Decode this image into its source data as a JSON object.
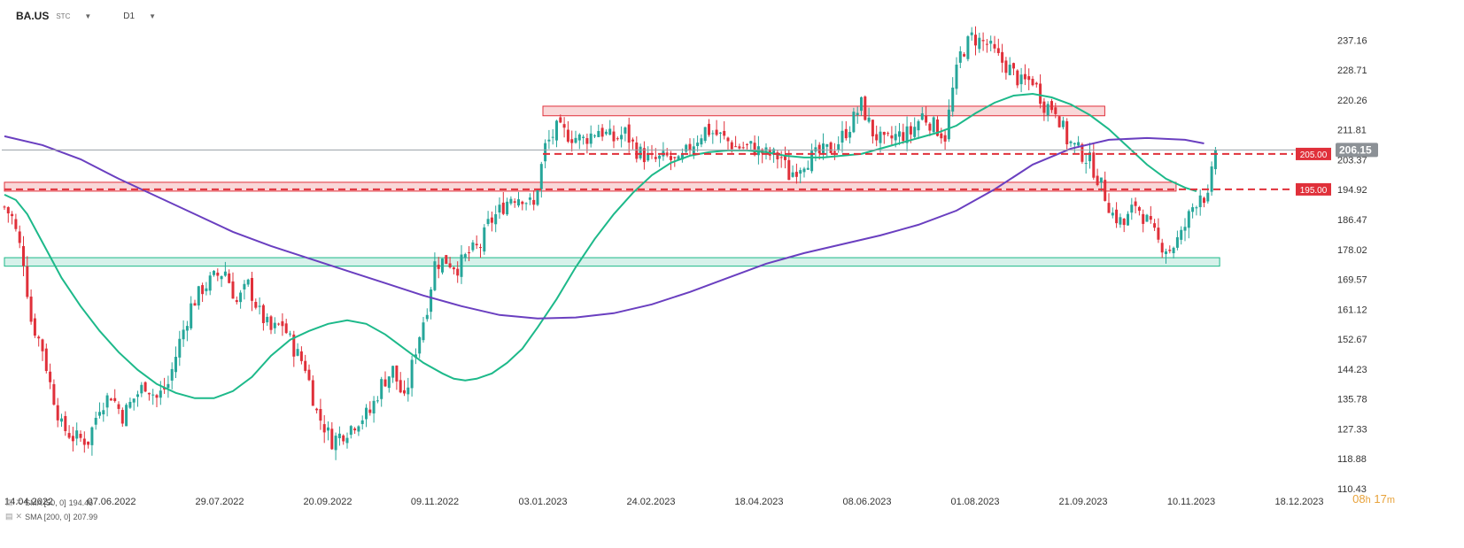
{
  "header": {
    "symbol": "BA.US",
    "symbol_type": "STC",
    "timeframe": "D1"
  },
  "timer": {
    "hours": "08",
    "hours_unit": "h",
    "minutes": "17",
    "minutes_unit": "m"
  },
  "legend": [
    {
      "label": "SMA [50, 0]",
      "value": "194.46"
    },
    {
      "label": "SMA [200, 0]",
      "value": "207.99"
    }
  ],
  "colors": {
    "up": "#26a69a",
    "down": "#e0303a",
    "sma50": "#1db98a",
    "sma200": "#6a3fc0",
    "zone_red_fill": "#f7c9cb",
    "zone_red_stroke": "#e0303a",
    "zone_green_fill": "#c8ece3",
    "zone_green_stroke": "#1db98a",
    "price_tag": "#8c9196"
  },
  "chart_data": {
    "type": "candlestick",
    "title": "",
    "xlabel": "",
    "ylabel": "",
    "ylim": [
      110.43,
      243
    ],
    "grid": false,
    "x_ticks": [
      "14.04.2022",
      "07.06.2022",
      "29.07.2022",
      "20.09.2022",
      "09.11.2022",
      "03.01.2023",
      "24.02.2023",
      "18.04.2023",
      "08.06.2023",
      "01.08.2023",
      "21.09.2023",
      "10.11.2023",
      "18.12.2023"
    ],
    "y_ticks": [
      "237.16",
      "228.71",
      "220.26",
      "211.81",
      "203.37",
      "194.92",
      "186.47",
      "178.02",
      "169.57",
      "161.12",
      "152.67",
      "144.23",
      "135.78",
      "127.33",
      "118.88",
      "110.43"
    ],
    "last_price": "206.15",
    "levels": [
      {
        "value": 205.0,
        "label": "205.00",
        "from": "03.01.2023"
      },
      {
        "value": 195.0,
        "label": "195.00",
        "from": "14.04.2022"
      }
    ],
    "zones": [
      {
        "name": "resistance-zone-upper",
        "low": 215.8,
        "high": 218.5,
        "from": "03.01.2023",
        "to": "01.10.2023"
      },
      {
        "name": "resistance-zone-lower",
        "low": 194.5,
        "high": 197.0,
        "from": "14.04.2022",
        "to": "03.11.2023"
      },
      {
        "name": "support-zone",
        "low": 173.3,
        "high": 175.7,
        "from": "14.04.2022",
        "to": "20.11.2023"
      }
    ],
    "series": [
      {
        "name": "SMA [50, 0]",
        "kind": "sma",
        "points": [
          [
            0,
            193.5
          ],
          [
            3,
            192
          ],
          [
            6,
            188
          ],
          [
            10,
            180
          ],
          [
            15,
            170
          ],
          [
            20,
            162
          ],
          [
            25,
            155
          ],
          [
            30,
            149
          ],
          [
            35,
            144
          ],
          [
            40,
            140
          ],
          [
            45,
            137.5
          ],
          [
            50,
            136
          ],
          [
            55,
            136
          ],
          [
            60,
            138
          ],
          [
            65,
            142
          ],
          [
            70,
            148
          ],
          [
            75,
            152.5
          ],
          [
            80,
            155
          ],
          [
            85,
            157
          ],
          [
            90,
            158
          ],
          [
            95,
            157
          ],
          [
            100,
            154
          ],
          [
            105,
            150
          ],
          [
            110,
            146
          ],
          [
            115,
            143
          ],
          [
            118,
            141.5
          ],
          [
            121,
            141
          ],
          [
            124,
            141.5
          ],
          [
            128,
            143
          ],
          [
            132,
            146
          ],
          [
            136,
            150
          ],
          [
            140,
            156
          ],
          [
            145,
            164
          ],
          [
            150,
            173
          ],
          [
            155,
            181
          ],
          [
            160,
            188
          ],
          [
            165,
            194
          ],
          [
            170,
            199
          ],
          [
            175,
            202.5
          ],
          [
            180,
            204.5
          ],
          [
            185,
            205.5
          ],
          [
            190,
            206
          ],
          [
            195,
            206
          ],
          [
            200,
            205.5
          ],
          [
            205,
            204.5
          ],
          [
            210,
            204
          ],
          [
            215,
            204
          ],
          [
            220,
            204.5
          ],
          [
            225,
            205
          ],
          [
            230,
            206.5
          ],
          [
            235,
            208
          ],
          [
            240,
            209.5
          ],
          [
            245,
            211
          ],
          [
            250,
            213
          ],
          [
            255,
            216.5
          ],
          [
            260,
            219.5
          ],
          [
            265,
            221.5
          ],
          [
            270,
            222
          ],
          [
            275,
            221
          ],
          [
            280,
            219
          ],
          [
            285,
            216
          ],
          [
            290,
            212
          ],
          [
            295,
            207
          ],
          [
            300,
            202
          ],
          [
            305,
            198
          ],
          [
            310,
            195.5
          ],
          [
            313,
            194.46
          ]
        ]
      },
      {
        "name": "SMA [200, 0]",
        "kind": "sma",
        "points": [
          [
            0,
            210
          ],
          [
            10,
            207.5
          ],
          [
            20,
            203.5
          ],
          [
            30,
            198
          ],
          [
            40,
            193
          ],
          [
            50,
            188
          ],
          [
            60,
            183
          ],
          [
            70,
            179
          ],
          [
            80,
            175.5
          ],
          [
            90,
            172
          ],
          [
            100,
            168.5
          ],
          [
            110,
            165
          ],
          [
            120,
            162
          ],
          [
            130,
            159.5
          ],
          [
            140,
            158.5
          ],
          [
            150,
            158.8
          ],
          [
            160,
            160
          ],
          [
            170,
            162.5
          ],
          [
            180,
            166
          ],
          [
            190,
            170
          ],
          [
            200,
            174
          ],
          [
            210,
            177
          ],
          [
            220,
            179.5
          ],
          [
            230,
            182
          ],
          [
            240,
            185
          ],
          [
            250,
            189
          ],
          [
            260,
            195
          ],
          [
            270,
            202
          ],
          [
            280,
            206.5
          ],
          [
            290,
            209
          ],
          [
            300,
            209.5
          ],
          [
            310,
            209
          ],
          [
            315,
            207.99
          ]
        ]
      },
      {
        "name": "candles",
        "kind": "ohlc",
        "seed": 7,
        "keypoints": [
          [
            0,
            190
          ],
          [
            2,
            187
          ],
          [
            5,
            175
          ],
          [
            7,
            158
          ],
          [
            10,
            150
          ],
          [
            12,
            140
          ],
          [
            15,
            128
          ],
          [
            18,
            125
          ],
          [
            22,
            124
          ],
          [
            25,
            134
          ],
          [
            28,
            137
          ],
          [
            31,
            131
          ],
          [
            34,
            136
          ],
          [
            37,
            140
          ],
          [
            40,
            136
          ],
          [
            43,
            140
          ],
          [
            46,
            152
          ],
          [
            49,
            162
          ],
          [
            52,
            167
          ],
          [
            55,
            170
          ],
          [
            58,
            172
          ],
          [
            61,
            163
          ],
          [
            64,
            168
          ],
          [
            67,
            160
          ],
          [
            70,
            155
          ],
          [
            73,
            157
          ],
          [
            76,
            150
          ],
          [
            79,
            145
          ],
          [
            82,
            132
          ],
          [
            86,
            124
          ],
          [
            90,
            127
          ],
          [
            93,
            130
          ],
          [
            96,
            132
          ],
          [
            99,
            140
          ],
          [
            102,
            144
          ],
          [
            105,
            135
          ],
          [
            108,
            150
          ],
          [
            111,
            162
          ],
          [
            113,
            174
          ],
          [
            116,
            175
          ],
          [
            119,
            173
          ],
          [
            122,
            177
          ],
          [
            125,
            179
          ],
          [
            127,
            185
          ],
          [
            130,
            189
          ],
          [
            133,
            193
          ],
          [
            136,
            193
          ],
          [
            139,
            190
          ],
          [
            140,
            196
          ],
          [
            142,
            207
          ],
          [
            145,
            212
          ],
          [
            149,
            210
          ],
          [
            152,
            209
          ],
          [
            156,
            212
          ],
          [
            160,
            209
          ],
          [
            163,
            211
          ],
          [
            166,
            206
          ],
          [
            170,
            203
          ],
          [
            174,
            204
          ],
          [
            177,
            202
          ],
          [
            180,
            207
          ],
          [
            184,
            212
          ],
          [
            188,
            210
          ],
          [
            192,
            207
          ],
          [
            196,
            207
          ],
          [
            200,
            205
          ],
          [
            204,
            204
          ],
          [
            206,
            199
          ],
          [
            210,
            203
          ],
          [
            214,
            205
          ],
          [
            218,
            207
          ],
          [
            222,
            213
          ],
          [
            225,
            219
          ],
          [
            228,
            211
          ],
          [
            231,
            208
          ],
          [
            234,
            210
          ],
          [
            238,
            211
          ],
          [
            241,
            216
          ],
          [
            244,
            213
          ],
          [
            247,
            210
          ],
          [
            249,
            223
          ],
          [
            251,
            233
          ],
          [
            254,
            238
          ],
          [
            258,
            236
          ],
          [
            261,
            232
          ],
          [
            264,
            229
          ],
          [
            267,
            225
          ],
          [
            270,
            226
          ],
          [
            273,
            219
          ],
          [
            276,
            218
          ],
          [
            279,
            209
          ],
          [
            282,
            206
          ],
          [
            285,
            203
          ],
          [
            288,
            196
          ],
          [
            291,
            188
          ],
          [
            294,
            185
          ],
          [
            297,
            191
          ],
          [
            300,
            186
          ],
          [
            303,
            180
          ],
          [
            306,
            178
          ],
          [
            309,
            182
          ],
          [
            312,
            190
          ],
          [
            314,
            194
          ],
          [
            316,
            192
          ],
          [
            318,
            206.15
          ]
        ]
      }
    ]
  }
}
